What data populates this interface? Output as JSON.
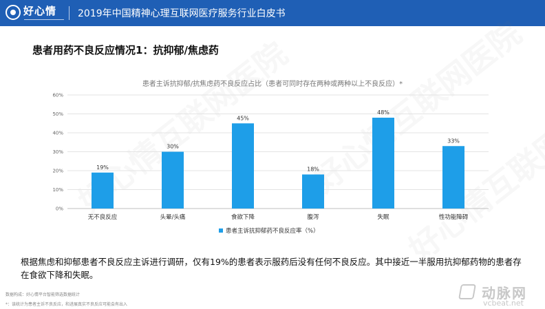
{
  "header": {
    "logo_text": "好心情",
    "title": "2019年中国精神心理互联网医疗服务行业白皮书"
  },
  "watermark_text": "好心情互联网医院",
  "section_title": "患者用药不良反应情况1：抗抑郁/焦虑药",
  "chart_data": {
    "type": "bar",
    "title": "患者主诉抗抑郁/抗焦虑药不良反应占比（患者可同时存在两种或两种以上不良反应）*",
    "categories": [
      "无不良反应",
      "头晕/头痛",
      "食欲下降",
      "腹泻",
      "失眠",
      "性功能障碍"
    ],
    "series": [
      {
        "name": "患者主诉抗抑郁药不良反应率（%）",
        "values": [
          19,
          30,
          45,
          18,
          48,
          33
        ]
      }
    ],
    "data_labels": [
      "19%",
      "30%",
      "45%",
      "18%",
      "48%",
      "33%"
    ],
    "y_ticks": [
      "0%",
      "10%",
      "20%",
      "30%",
      "40%",
      "50%",
      "60%"
    ],
    "ylim": [
      0,
      60
    ],
    "grid": true,
    "legend_position": "bottom",
    "bar_color": "#1e9ee8"
  },
  "summary": {
    "text": "根据焦虑和抑郁患者不良反应主诉进行调研，仅有19%的患者表示服药后没有任何不良反应。其中接近一半服用抗抑郁药物的患者存在食欲下降和失眠。"
  },
  "footnotes": {
    "source": "数据构成：好心情平台智能筛选数据统计",
    "note": "*：该统计为患者主诉不良反应，和进展真实不良反应可能会有出入"
  },
  "brand": {
    "name": "动脉网",
    "url": "vcbeat.net"
  }
}
